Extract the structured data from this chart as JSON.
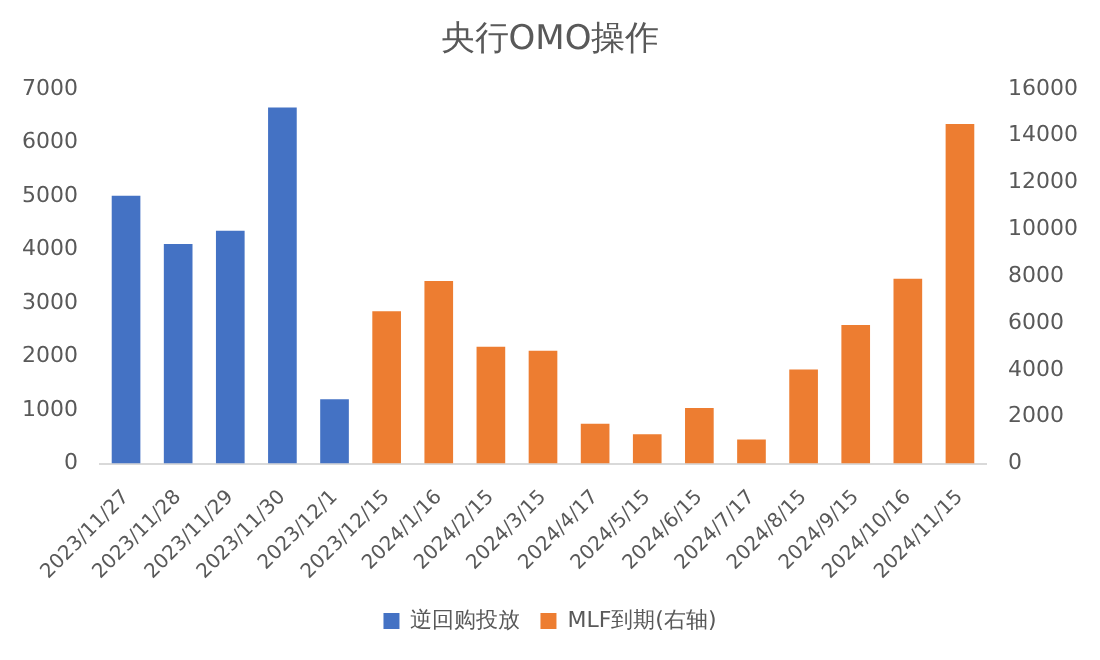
{
  "chart_data": {
    "type": "bar",
    "title": "央行OMO操作",
    "categories": [
      "2023/11/27",
      "2023/11/28",
      "2023/11/29",
      "2023/11/30",
      "2023/12/1",
      "2023/12/15",
      "2024/1/16",
      "2024/2/15",
      "2024/3/15",
      "2024/4/17",
      "2024/5/15",
      "2024/6/15",
      "2024/7/17",
      "2024/8/15",
      "2024/9/15",
      "2024/10/16",
      "2024/11/15"
    ],
    "series": [
      {
        "name": "逆回购投放",
        "color": "#4472c4",
        "values": [
          5000,
          4100,
          4350,
          6650,
          1200,
          null,
          null,
          null,
          null,
          null,
          null,
          null,
          null,
          null,
          null,
          null,
          null
        ]
      },
      {
        "name": "MLF到期(右轴)",
        "color": "#ed7d31",
        "axis": "y2",
        "values": [
          null,
          null,
          null,
          null,
          null,
          6500,
          7790,
          4990,
          4810,
          1700,
          1250,
          2370,
          1030,
          4010,
          5910,
          7890,
          14500
        ]
      }
    ],
    "ylim": [
      0,
      7000
    ],
    "yticks": [
      0,
      1000,
      2000,
      3000,
      4000,
      5000,
      6000,
      7000
    ],
    "y2lim": [
      0,
      16000
    ],
    "y2ticks": [
      0,
      2000,
      4000,
      6000,
      8000,
      10000,
      12000,
      14000,
      16000
    ],
    "grid": false,
    "legend": "bottom"
  }
}
